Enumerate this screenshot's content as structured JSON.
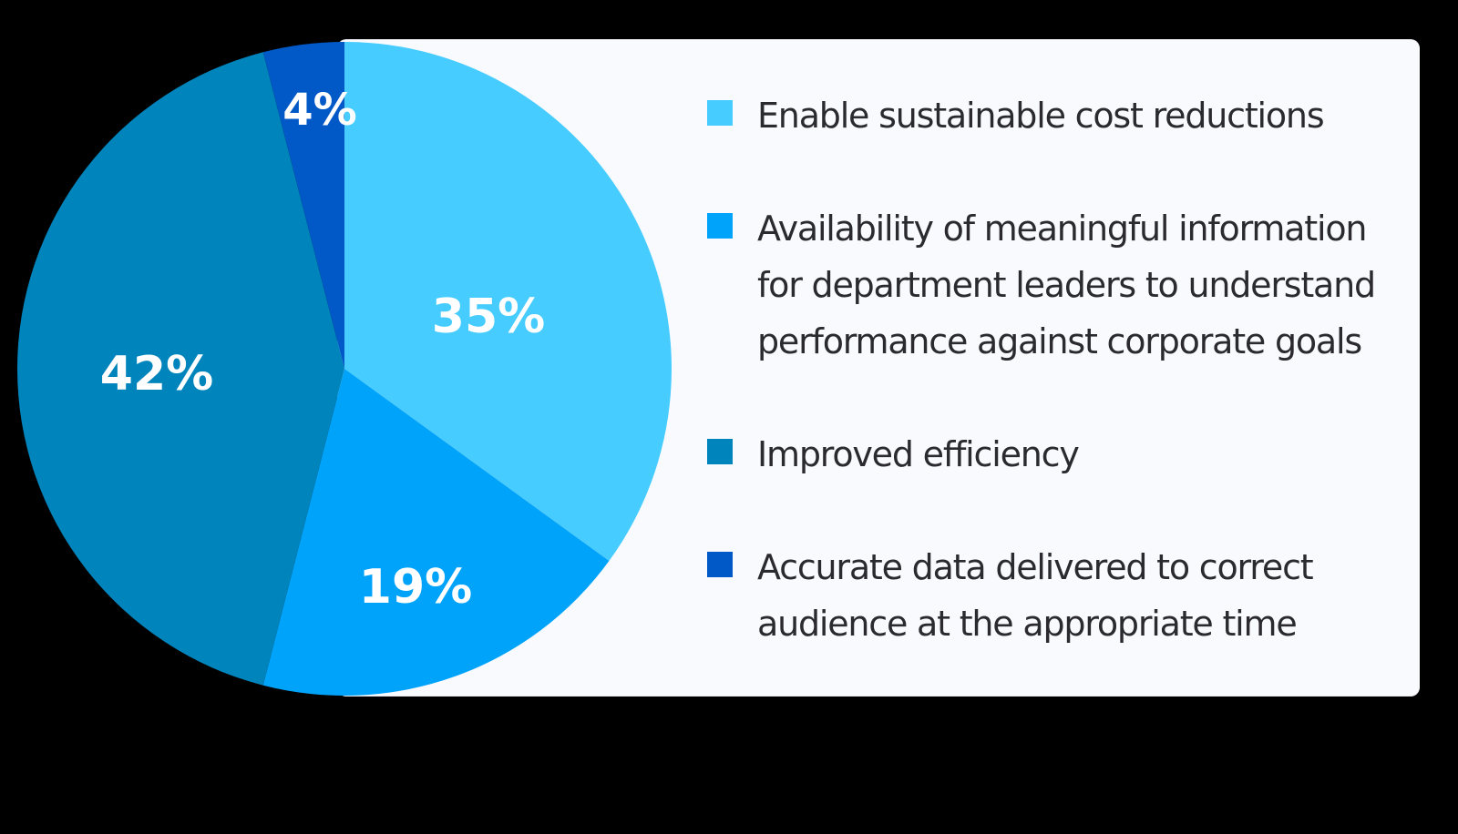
{
  "chart_data": {
    "type": "pie",
    "title": "",
    "categories": [
      "Enable sustainable cost reductions",
      "Availability of meaningful information for department leaders to understand performance against corporate goals",
      "Improved efficiency",
      "Accurate data delivered to correct audience at the appropriate time"
    ],
    "values": [
      35,
      19,
      42,
      4
    ],
    "value_labels": [
      "35%",
      "19%",
      "42%",
      "4%"
    ],
    "colors": [
      "#47ccff",
      "#00a3fa",
      "#0084bc",
      "#0059c6"
    ],
    "start_angle": "12 o'clock",
    "direction": "clockwise",
    "legend_position": "right"
  },
  "legend": {
    "items": [
      {
        "label": "Enable sustainable cost reductions",
        "color": "#47ccff"
      },
      {
        "label": "Availability of meaningful information\nfor department leaders to understand\nperformance against corporate goals",
        "color": "#00a3fa"
      },
      {
        "label": "Improved efficiency",
        "color": "#0084bc"
      },
      {
        "label": "Accurate data delivered to correct\naudience at the appropriate time",
        "color": "#0059c6"
      }
    ]
  },
  "slices": [
    {
      "label": "35%",
      "color": "#47ccff"
    },
    {
      "label": "19%",
      "color": "#00a3fa"
    },
    {
      "label": "42%",
      "color": "#0084bc"
    },
    {
      "label": "4%",
      "color": "#0059c6"
    }
  ]
}
